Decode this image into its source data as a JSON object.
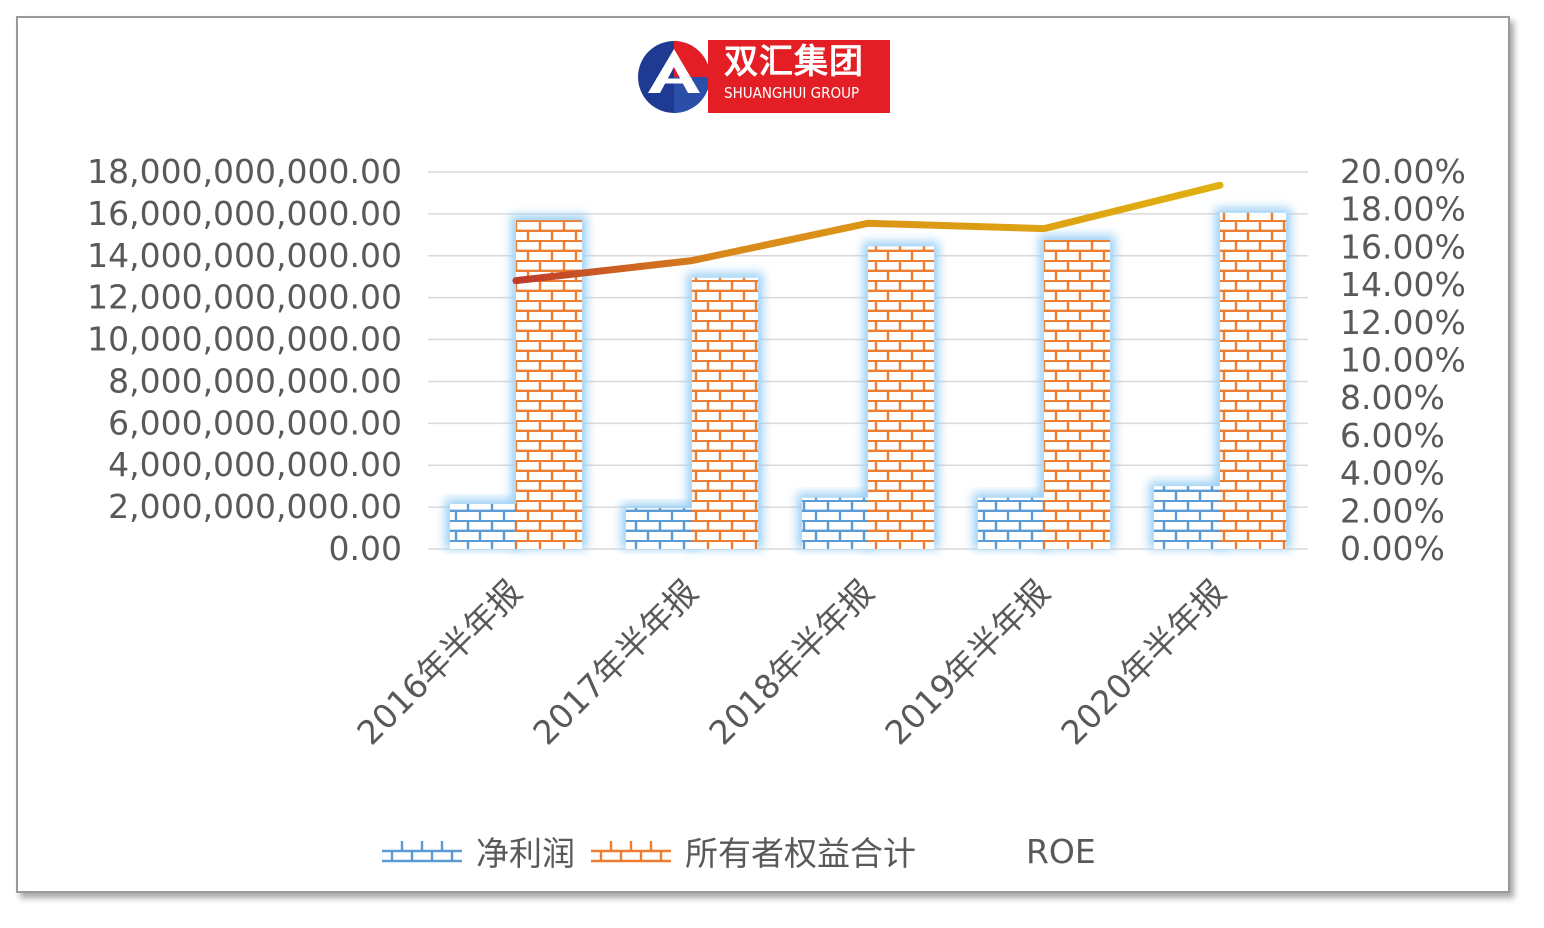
{
  "logo": {
    "cn": "双汇集团",
    "en": "SHUANGHUI GROUP"
  },
  "colors": {
    "net_profit": "#5b9bd5",
    "equity": "#ed7d31",
    "roe": "#d4a017",
    "roe_start": "#c0392b",
    "glow": "#9dd0f5",
    "grid": "#d9d9d9"
  },
  "chart_data": {
    "type": "bar",
    "categories": [
      "2016年半年报",
      "2017年半年报",
      "2018年半年报",
      "2019年半年报",
      "2020年半年报"
    ],
    "series": [
      {
        "name": "净利润",
        "type": "bar",
        "axis": "left",
        "values": [
          2150000000,
          1950000000,
          2450000000,
          2450000000,
          3000000000
        ]
      },
      {
        "name": "所有者权益合计",
        "type": "bar",
        "axis": "left",
        "values": [
          15700000000,
          12950000000,
          14450000000,
          14750000000,
          16050000000
        ]
      },
      {
        "name": "ROE",
        "type": "line",
        "axis": "right",
        "values": [
          0.1424,
          0.153,
          0.1728,
          0.17,
          0.193
        ]
      }
    ],
    "ylim": [
      0,
      18000000000
    ],
    "y_ticks": [
      "0.00",
      "2,000,000,000.00",
      "4,000,000,000.00",
      "6,000,000,000.00",
      "8,000,000,000.00",
      "10,000,000,000.00",
      "12,000,000,000.00",
      "14,000,000,000.00",
      "16,000,000,000.00",
      "18,000,000,000.00"
    ],
    "y2lim": [
      0,
      0.2
    ],
    "y2_ticks": [
      "0.00%",
      "2.00%",
      "4.00%",
      "6.00%",
      "8.00%",
      "10.00%",
      "12.00%",
      "14.00%",
      "16.00%",
      "18.00%",
      "20.00%"
    ],
    "grid": true,
    "legend": "bottom"
  }
}
